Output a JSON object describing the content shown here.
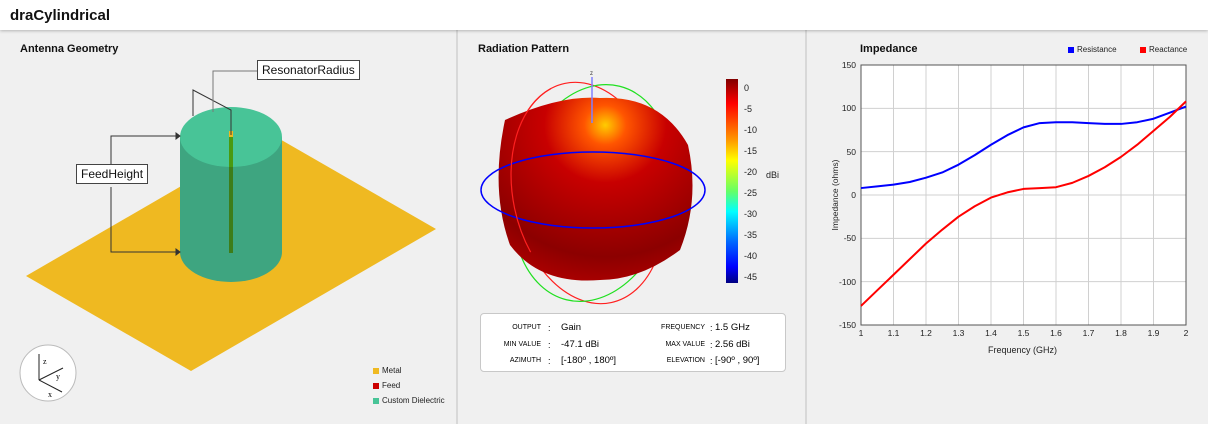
{
  "app": {
    "title": "draCylindrical"
  },
  "geometry": {
    "title": "Antenna Geometry",
    "annotations": {
      "resonator_radius": "ResonatorRadius",
      "feed_height": "FeedHeight"
    },
    "axes": {
      "x": "x",
      "y": "y",
      "z": "z"
    },
    "legend": [
      {
        "label": "Metal",
        "color": "#efb921"
      },
      {
        "label": "Feed",
        "color": "#cc0000"
      },
      {
        "label": "Custom Dielectric",
        "color": "#48c497"
      }
    ]
  },
  "radiation": {
    "title": "Radiation Pattern",
    "axis_label_z": "z",
    "colorbar": {
      "unit": "dBi",
      "ticks": [
        "0",
        "-5",
        "-10",
        "-15",
        "-20",
        "-25",
        "-30",
        "-35",
        "-40",
        "-45"
      ]
    },
    "info": {
      "output_label": "OUTPUT",
      "output": "Gain",
      "frequency_label": "FREQUENCY",
      "frequency": "1.5 GHz",
      "min_label": "MIN VALUE",
      "min": "-47.1 dBi",
      "max_label": "MAX VALUE",
      "max": "2.56 dBi",
      "azimuth_label": "AZIMUTH",
      "azimuth": "[-180º , 180º]",
      "elevation_label": "ELEVATION",
      "elevation": "[-90º , 90º]",
      "sep": ":"
    }
  },
  "chart_data": {
    "type": "line",
    "title": "Impedance",
    "xlabel": "Frequency (GHz)",
    "ylabel": "Impedance (ohms)",
    "xlim": [
      1,
      2
    ],
    "ylim": [
      -150,
      150
    ],
    "xticks": [
      "1",
      "1.1",
      "1.2",
      "1.3",
      "1.4",
      "1.5",
      "1.6",
      "1.7",
      "1.8",
      "1.9",
      "2"
    ],
    "yticks": [
      "150",
      "100",
      "50",
      "0",
      "-50",
      "-100",
      "-150"
    ],
    "grid": true,
    "legend_position": "top-right",
    "x": [
      1.0,
      1.05,
      1.1,
      1.15,
      1.2,
      1.25,
      1.3,
      1.35,
      1.4,
      1.45,
      1.5,
      1.55,
      1.6,
      1.65,
      1.7,
      1.75,
      1.8,
      1.85,
      1.9,
      1.95,
      2.0
    ],
    "series": [
      {
        "name": "Resistance",
        "color": "#0000ff",
        "values": [
          8,
          10,
          12,
          15,
          20,
          26,
          35,
          46,
          58,
          69,
          78,
          83,
          84,
          84,
          83,
          82,
          82,
          84,
          88,
          95,
          102
        ]
      },
      {
        "name": "Reactance",
        "color": "#ff0000",
        "values": [
          -128,
          -110,
          -92,
          -74,
          -56,
          -40,
          -25,
          -13,
          -3,
          3,
          7,
          8,
          9,
          14,
          22,
          32,
          44,
          58,
          74,
          90,
          108
        ]
      }
    ]
  }
}
